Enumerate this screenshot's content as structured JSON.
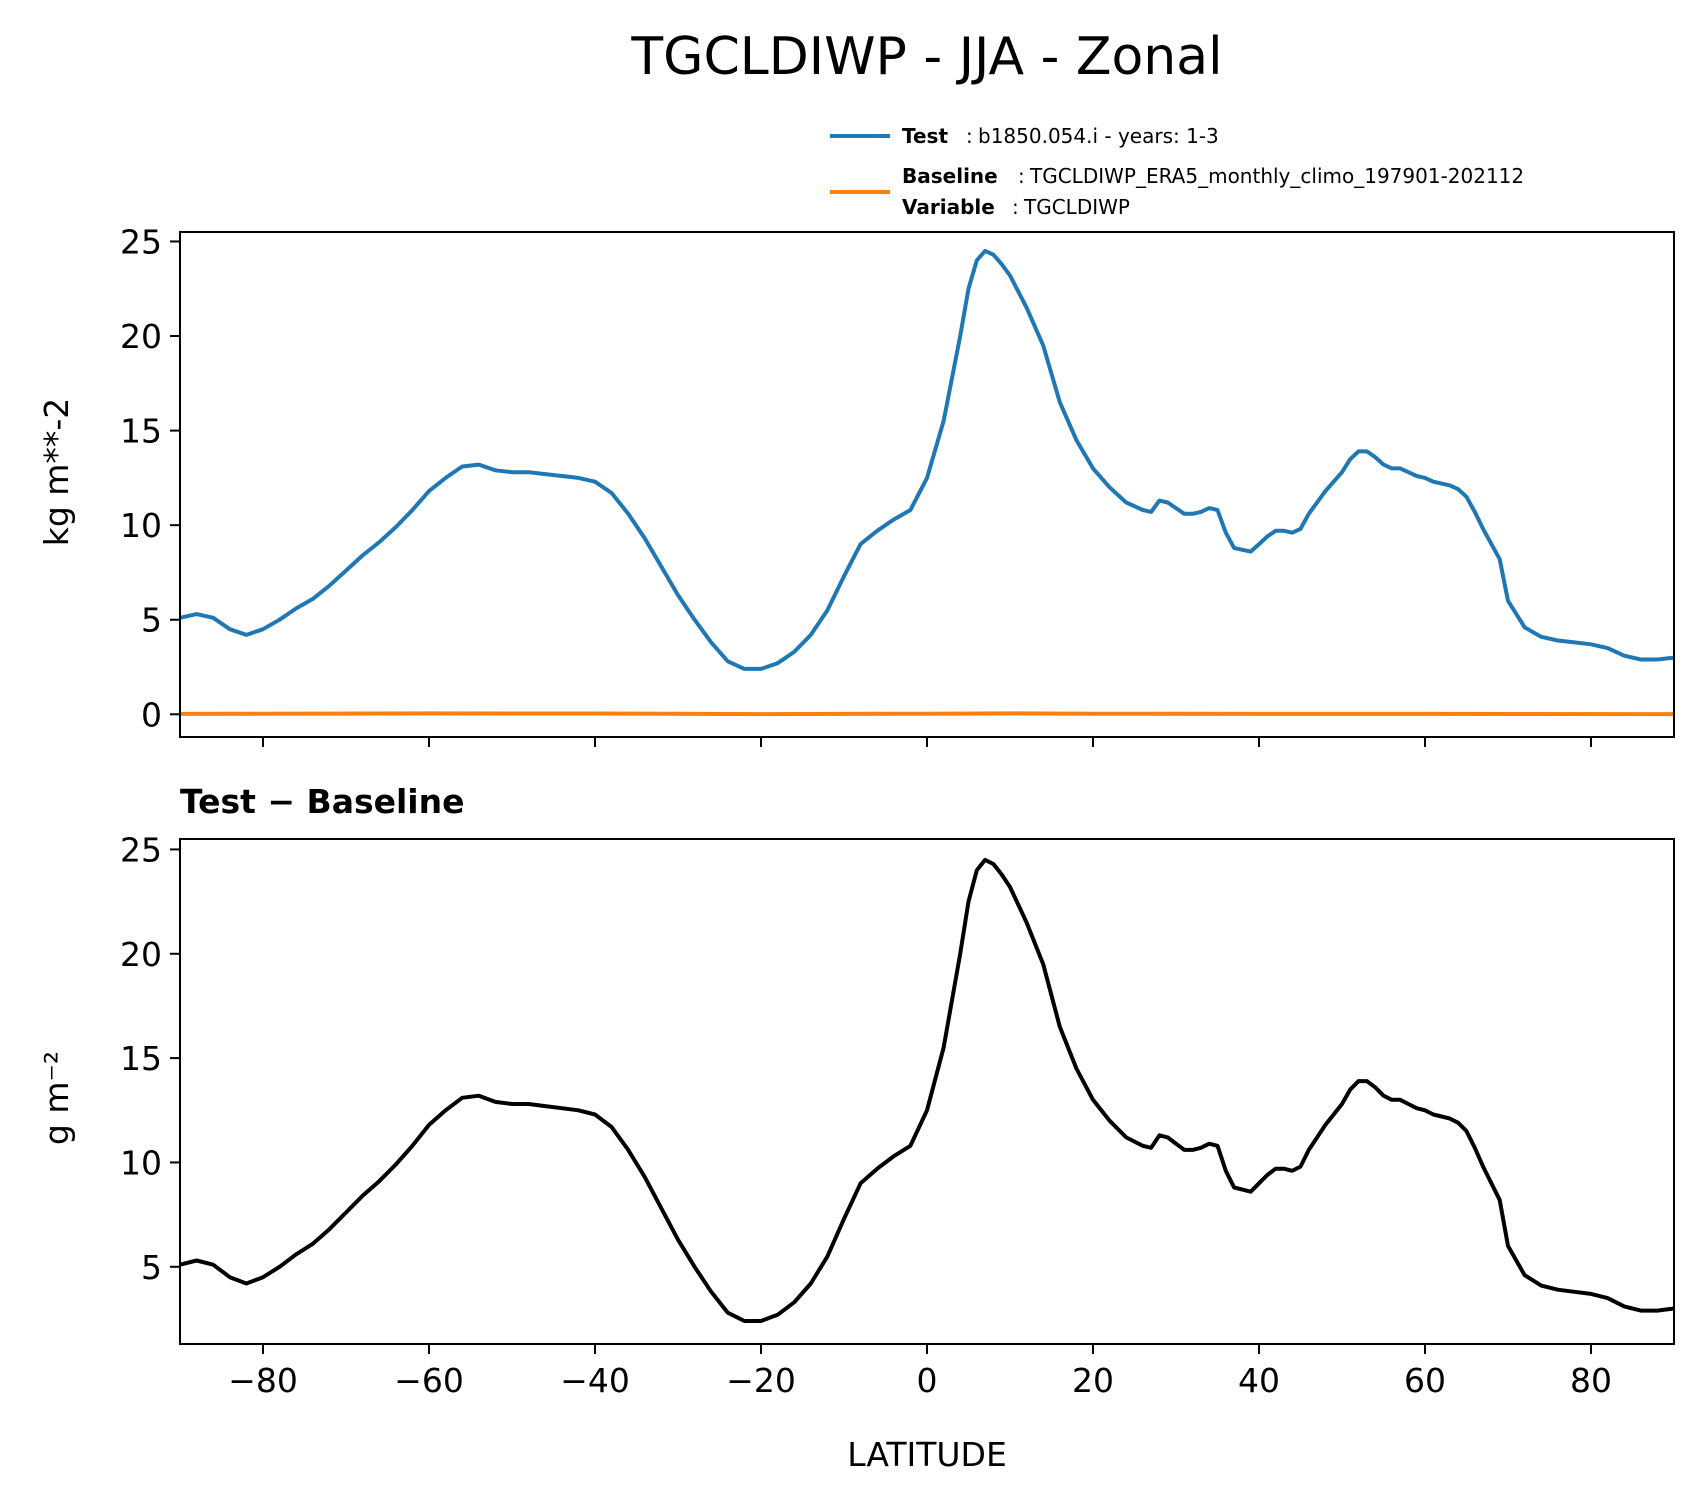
{
  "title": "TGCLDIWP - JJA - Zonal",
  "colors": {
    "test": "#1f77b4",
    "baseline": "#ff7f0e",
    "diff": "#000000",
    "axes": "#000000"
  },
  "legend": {
    "test_key": "Test",
    "test_value": "b1850.054.i - years: 1-3",
    "baseline_key": "Baseline",
    "baseline_value": "TGCLDIWP_ERA5_monthly_climo_197901-202112",
    "variable_key": "Variable",
    "variable_value": "TGCLDIWP",
    "placement": "above-top-right"
  },
  "chart_data": [
    {
      "type": "line",
      "title": "",
      "xlabel": "",
      "ylabel": "kg m**-2",
      "xlim": [
        -90,
        90
      ],
      "ylim": [
        -1.2,
        25.5
      ],
      "xticks": [
        -80,
        -60,
        -40,
        -20,
        0,
        20,
        40,
        60,
        80
      ],
      "xticklabels_visible": false,
      "yticks": [
        0,
        5,
        10,
        15,
        20,
        25
      ],
      "yticklabels": [
        "0",
        "5",
        "10",
        "15",
        "20",
        "25"
      ],
      "grid": false,
      "series": [
        {
          "name": "Test",
          "x": [
            -90,
            -88,
            -86,
            -84,
            -82,
            -80,
            -78,
            -76,
            -74,
            -72,
            -70,
            -68,
            -66,
            -64,
            -62,
            -60,
            -58,
            -56,
            -54,
            -52,
            -50,
            -48,
            -46,
            -44,
            -42,
            -40,
            -38,
            -36,
            -34,
            -32,
            -30,
            -28,
            -26,
            -24,
            -22,
            -20,
            -18,
            -16,
            -14,
            -12,
            -10,
            -8,
            -6,
            -4,
            -2,
            0,
            2,
            4,
            5,
            6,
            7,
            8,
            9,
            10,
            12,
            14,
            16,
            18,
            20,
            22,
            24,
            26,
            27,
            28,
            29,
            30,
            31,
            32,
            33,
            34,
            35,
            36,
            37,
            38,
            39,
            40,
            41,
            42,
            43,
            44,
            45,
            46,
            48,
            50,
            51,
            52,
            53,
            54,
            55,
            56,
            57,
            58,
            59,
            60,
            61,
            62,
            63,
            64,
            65,
            66,
            67,
            68,
            69,
            70,
            72,
            74,
            76,
            78,
            80,
            82,
            84,
            86,
            88,
            90
          ],
          "y": [
            5.1,
            5.3,
            5.1,
            4.5,
            4.2,
            4.5,
            5.0,
            5.6,
            6.1,
            6.8,
            7.6,
            8.4,
            9.1,
            9.9,
            10.8,
            11.8,
            12.5,
            13.1,
            13.2,
            12.9,
            12.8,
            12.8,
            12.7,
            12.6,
            12.5,
            12.3,
            11.7,
            10.6,
            9.3,
            7.8,
            6.3,
            5.0,
            3.8,
            2.8,
            2.4,
            2.4,
            2.7,
            3.3,
            4.2,
            5.5,
            7.3,
            9.0,
            9.7,
            10.3,
            10.8,
            12.5,
            15.5,
            20.0,
            22.5,
            24.0,
            24.5,
            24.3,
            23.8,
            23.2,
            21.5,
            19.5,
            16.5,
            14.5,
            13.0,
            12.0,
            11.2,
            10.8,
            10.7,
            11.3,
            11.2,
            10.9,
            10.6,
            10.6,
            10.7,
            10.9,
            10.8,
            9.6,
            8.8,
            8.7,
            8.6,
            9.0,
            9.4,
            9.7,
            9.7,
            9.6,
            9.8,
            10.6,
            11.8,
            12.8,
            13.5,
            13.9,
            13.9,
            13.6,
            13.2,
            13.0,
            13.0,
            12.8,
            12.6,
            12.5,
            12.3,
            12.2,
            12.1,
            11.9,
            11.5,
            10.7,
            9.8,
            9.0,
            8.2,
            6.0,
            4.6,
            4.1,
            3.9,
            3.8,
            3.7,
            3.5,
            3.1,
            2.9,
            2.9,
            3.0
          ]
        },
        {
          "name": "Baseline",
          "x": [
            -90,
            -60,
            -40,
            -20,
            0,
            10,
            20,
            40,
            60,
            90
          ],
          "y": [
            0.02,
            0.05,
            0.04,
            0.01,
            0.03,
            0.05,
            0.03,
            0.02,
            0.02,
            0.01
          ]
        }
      ]
    },
    {
      "type": "line",
      "title": "Test − Baseline",
      "xlabel": "LATITUDE",
      "ylabel": "g m⁻²",
      "xlim": [
        -90,
        90
      ],
      "ylim": [
        1.3,
        25.5
      ],
      "xticks": [
        -80,
        -60,
        -40,
        -20,
        0,
        20,
        40,
        60,
        80
      ],
      "xticklabels": [
        "−80",
        "−60",
        "−40",
        "−20",
        "0",
        "20",
        "40",
        "60",
        "80"
      ],
      "yticks": [
        5,
        10,
        15,
        20,
        25
      ],
      "yticklabels": [
        "5",
        "10",
        "15",
        "20",
        "25"
      ],
      "grid": false,
      "series": [
        {
          "x": [
            -90,
            -88,
            -86,
            -84,
            -82,
            -80,
            -78,
            -76,
            -74,
            -72,
            -70,
            -68,
            -66,
            -64,
            -62,
            -60,
            -58,
            -56,
            -54,
            -52,
            -50,
            -48,
            -46,
            -44,
            -42,
            -40,
            -38,
            -36,
            -34,
            -32,
            -30,
            -28,
            -26,
            -24,
            -22,
            -20,
            -18,
            -16,
            -14,
            -12,
            -10,
            -8,
            -6,
            -4,
            -2,
            0,
            2,
            4,
            5,
            6,
            7,
            8,
            9,
            10,
            12,
            14,
            16,
            18,
            20,
            22,
            24,
            26,
            27,
            28,
            29,
            30,
            31,
            32,
            33,
            34,
            35,
            36,
            37,
            38,
            39,
            40,
            41,
            42,
            43,
            44,
            45,
            46,
            48,
            50,
            51,
            52,
            53,
            54,
            55,
            56,
            57,
            58,
            59,
            60,
            61,
            62,
            63,
            64,
            65,
            66,
            67,
            68,
            69,
            70,
            72,
            74,
            76,
            78,
            80,
            82,
            84,
            86,
            88,
            90
          ],
          "y": [
            5.1,
            5.3,
            5.1,
            4.5,
            4.2,
            4.5,
            5.0,
            5.6,
            6.1,
            6.8,
            7.6,
            8.4,
            9.1,
            9.9,
            10.8,
            11.8,
            12.5,
            13.1,
            13.2,
            12.9,
            12.8,
            12.8,
            12.7,
            12.6,
            12.5,
            12.3,
            11.7,
            10.6,
            9.3,
            7.8,
            6.3,
            5.0,
            3.8,
            2.8,
            2.4,
            2.4,
            2.7,
            3.3,
            4.2,
            5.5,
            7.3,
            9.0,
            9.7,
            10.3,
            10.8,
            12.5,
            15.5,
            20.0,
            22.5,
            24.0,
            24.5,
            24.3,
            23.8,
            23.2,
            21.5,
            19.5,
            16.5,
            14.5,
            13.0,
            12.0,
            11.2,
            10.8,
            10.7,
            11.3,
            11.2,
            10.9,
            10.6,
            10.6,
            10.7,
            10.9,
            10.8,
            9.6,
            8.8,
            8.7,
            8.6,
            9.0,
            9.4,
            9.7,
            9.7,
            9.6,
            9.8,
            10.6,
            11.8,
            12.8,
            13.5,
            13.9,
            13.9,
            13.6,
            13.2,
            13.0,
            13.0,
            12.8,
            12.6,
            12.5,
            12.3,
            12.2,
            12.1,
            11.9,
            11.5,
            10.7,
            9.8,
            9.0,
            8.2,
            6.0,
            4.6,
            4.1,
            3.9,
            3.8,
            3.7,
            3.5,
            3.1,
            2.9,
            2.9,
            3.0
          ]
        }
      ]
    }
  ]
}
